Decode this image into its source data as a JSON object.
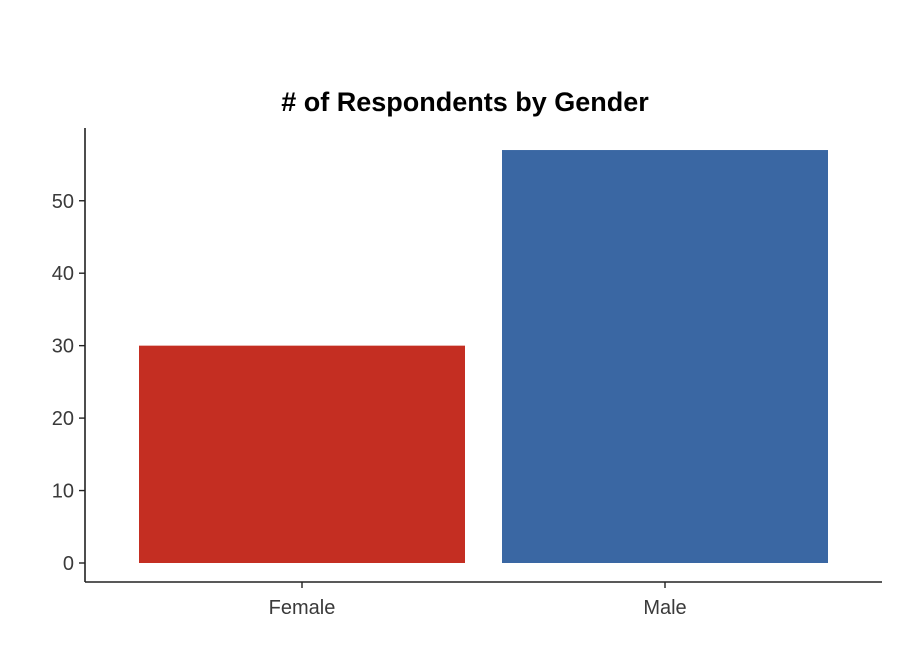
{
  "chart_data": {
    "type": "bar",
    "title": "# of Respondents by Gender",
    "xlabel": "",
    "ylabel": "",
    "categories": [
      "Female",
      "Male"
    ],
    "values": [
      30,
      57
    ],
    "colors": [
      "#C42E22",
      "#3A67A3"
    ],
    "ylim": [
      0,
      60
    ],
    "yticks": [
      0,
      10,
      20,
      30,
      40,
      50
    ],
    "grid": false,
    "legend": "none"
  }
}
